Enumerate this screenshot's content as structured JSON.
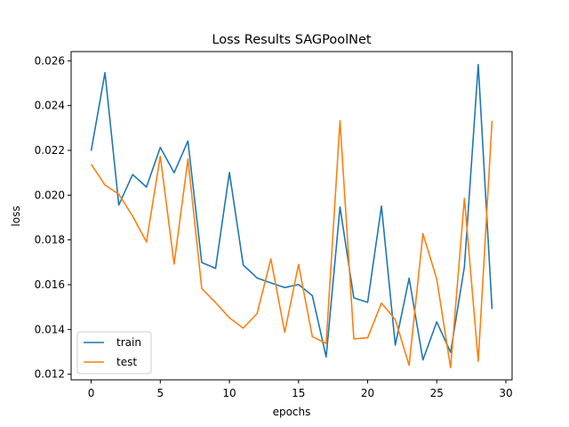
{
  "chart_data": {
    "type": "line",
    "title": "Loss Results SAGPoolNet",
    "xlabel": "epochs",
    "ylabel": "loss",
    "xlim": [
      -1.45,
      30.45
    ],
    "ylim": [
      0.01175,
      0.02641
    ],
    "xticks": [
      0,
      5,
      10,
      15,
      20,
      25,
      30
    ],
    "xtick_labels": [
      "0",
      "5",
      "10",
      "15",
      "20",
      "25",
      "30"
    ],
    "yticks": [
      0.012,
      0.014,
      0.016,
      0.018,
      0.02,
      0.022,
      0.024,
      0.026
    ],
    "ytick_labels": [
      "0.012",
      "0.014",
      "0.016",
      "0.018",
      "0.020",
      "0.022",
      "0.024",
      "0.026"
    ],
    "grid": false,
    "legend_position": "lower-left",
    "x": [
      0,
      1,
      2,
      3,
      4,
      5,
      6,
      7,
      8,
      9,
      10,
      11,
      12,
      13,
      14,
      15,
      16,
      17,
      18,
      19,
      20,
      21,
      22,
      23,
      24,
      25,
      26,
      27,
      28,
      29
    ],
    "series": [
      {
        "name": "train",
        "color": "#1f77b4",
        "values": [
          0.02198,
          0.02547,
          0.01956,
          0.02092,
          0.02036,
          0.02213,
          0.021,
          0.02242,
          0.01699,
          0.01673,
          0.02101,
          0.01688,
          0.0163,
          0.01608,
          0.01587,
          0.01601,
          0.01551,
          0.01277,
          0.01947,
          0.01541,
          0.01521,
          0.01951,
          0.0133,
          0.01629,
          0.01264,
          0.01434,
          0.01298,
          0.0168,
          0.02583,
          0.01491
        ]
      },
      {
        "name": "test",
        "color": "#ff7f0e",
        "values": [
          0.02138,
          0.02045,
          0.02004,
          0.01906,
          0.01791,
          0.02174,
          0.01692,
          0.02161,
          0.01583,
          0.0152,
          0.01452,
          0.01406,
          0.01471,
          0.01715,
          0.01387,
          0.0169,
          0.01368,
          0.01338,
          0.02332,
          0.01358,
          0.01363,
          0.01518,
          0.01444,
          0.0124,
          0.01828,
          0.01625,
          0.01229,
          0.01986,
          0.01258,
          0.02332
        ]
      }
    ]
  }
}
